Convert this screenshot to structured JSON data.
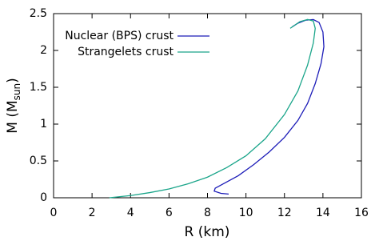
{
  "chart_data": {
    "type": "line",
    "xlabel": "R (km)",
    "ylabel": [
      "M (M",
      "sun",
      ")"
    ],
    "xlim": [
      0,
      16
    ],
    "xticks": [
      0,
      2,
      4,
      6,
      8,
      10,
      12,
      14,
      16
    ],
    "ylim": [
      0,
      2.5
    ],
    "yticks": [
      0,
      0.5,
      1,
      1.5,
      2,
      2.5
    ],
    "legend": "upper left",
    "series": [
      {
        "name": "Nuclear (BPS) crust",
        "color": "#1c1cb8",
        "x": [
          9.1,
          8.7,
          8.35,
          8.4,
          8.9,
          9.6,
          10.4,
          11.2,
          12.0,
          12.7,
          13.2,
          13.6,
          13.9,
          14.05,
          14.0,
          13.8,
          13.5,
          13.1,
          12.7,
          12.4
        ],
        "values": [
          0.05,
          0.06,
          0.09,
          0.13,
          0.2,
          0.3,
          0.45,
          0.62,
          0.82,
          1.05,
          1.28,
          1.55,
          1.82,
          2.05,
          2.25,
          2.38,
          2.42,
          2.41,
          2.37,
          2.32
        ]
      },
      {
        "name": "Strangelets crust",
        "color": "#1aa58a",
        "x": [
          2.9,
          4,
          5,
          6,
          7,
          8,
          9,
          10,
          11,
          12,
          12.7,
          13.2,
          13.5,
          13.6,
          13.5,
          13.2,
          12.8,
          12.3
        ],
        "values": [
          0,
          0.03,
          0.07,
          0.12,
          0.19,
          0.28,
          0.41,
          0.57,
          0.8,
          1.13,
          1.45,
          1.8,
          2.1,
          2.3,
          2.4,
          2.42,
          2.39,
          2.3
        ]
      }
    ]
  }
}
